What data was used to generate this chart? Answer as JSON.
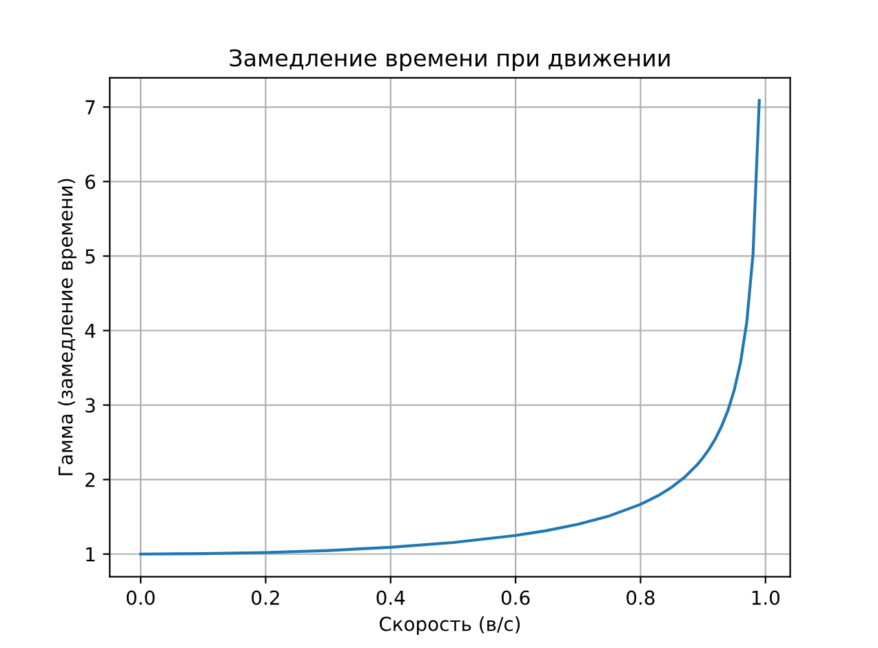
{
  "chart_data": {
    "type": "line",
    "title": "Замедление времени при движении",
    "xlabel": "Скорость (в/с)",
    "ylabel": "Гамма (замедление времени)",
    "x": [
      0,
      0.1,
      0.2,
      0.3,
      0.4,
      0.5,
      0.6,
      0.65,
      0.7,
      0.75,
      0.8,
      0.83,
      0.85,
      0.87,
      0.89,
      0.9,
      0.91,
      0.92,
      0.93,
      0.94,
      0.95,
      0.96,
      0.97,
      0.98,
      0.99
    ],
    "series": [
      {
        "color": "#1f77b4",
        "values": [
          1.0,
          1.005,
          1.021,
          1.048,
          1.091,
          1.155,
          1.25,
          1.316,
          1.4,
          1.512,
          1.667,
          1.793,
          1.898,
          2.028,
          2.193,
          2.294,
          2.412,
          2.551,
          2.721,
          2.931,
          3.203,
          3.571,
          4.113,
          5.025,
          7.089
        ]
      }
    ],
    "xlim": [
      -0.0495,
      1.0395
    ],
    "ylim": [
      0.696,
      7.393
    ],
    "xticks": [
      {
        "value": 0,
        "label": "0.0"
      },
      0.2,
      0.4,
      0.6,
      0.8,
      {
        "value": 1,
        "label": "1.0"
      }
    ],
    "yticks": [
      1,
      2,
      3,
      4,
      5,
      6,
      7
    ],
    "grid": true,
    "marker": "none",
    "line_style": "solid"
  }
}
